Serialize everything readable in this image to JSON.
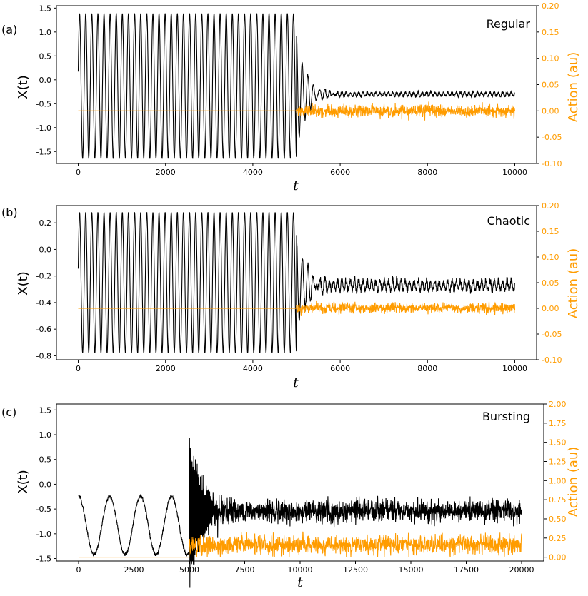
{
  "chart_data": [
    {
      "type": "line",
      "panel_letter": "(a)",
      "title": "Regular",
      "xlabel": "t",
      "ylabel": "X(t)",
      "ylabel_right": "Action (au)",
      "xlim": [
        -500,
        10500
      ],
      "ylim": [
        -1.75,
        1.55
      ],
      "ylim_right": [
        -0.1,
        0.2
      ],
      "xticks": [
        "0",
        "2000",
        "4000",
        "6000",
        "8000",
        "10000"
      ],
      "yticks": [
        "1.5",
        "1.0",
        "0.5",
        "0.0",
        "-0.5",
        "-1.0",
        "-1.5"
      ],
      "yticks_right": [
        "0.20",
        "0.15",
        "0.10",
        "0.05",
        "0.00",
        "-0.05",
        "-0.10"
      ],
      "series": [
        {
          "name": "X(t)",
          "color": "#000000",
          "description": "Regular oscillation between about -1.65 and 1.40 with period ~140 until t≈5000, then decays to a noisy steady state near -0.3",
          "pre_amplitude": 1.52,
          "pre_center": -0.13,
          "period": 140,
          "switch_t": 5000,
          "post_level": -0.3,
          "post_noise": 0.04,
          "x_end": 10000
        },
        {
          "name": "Action (au)",
          "color": "#ff9c00",
          "axis": "right",
          "description": "Zero until t≈5000, then noise of about ±0.012 around 0",
          "pre_level": 0.0,
          "post_noise": 0.012,
          "x_end": 10000
        }
      ]
    },
    {
      "type": "line",
      "panel_letter": "(b)",
      "title": "Chaotic",
      "xlabel": "t",
      "ylabel": "X(t)",
      "ylabel_right": "Action (au)",
      "xlim": [
        -500,
        10500
      ],
      "ylim": [
        -0.83,
        0.33
      ],
      "ylim_right": [
        -0.1,
        0.2
      ],
      "xticks": [
        "0",
        "2000",
        "4000",
        "6000",
        "8000",
        "10000"
      ],
      "yticks": [
        "0.2",
        "0.0",
        "-0.2",
        "-0.4",
        "-0.6",
        "-0.8"
      ],
      "yticks_right": [
        "0.20",
        "0.15",
        "0.10",
        "0.05",
        "0.00",
        "-0.05",
        "-0.10"
      ],
      "series": [
        {
          "name": "X(t)",
          "color": "#000000",
          "description": "Oscillation between about -0.78 and 0.28 with period ~140 until t≈5000, then irregular fluctuations near -0.27",
          "pre_amplitude": 0.53,
          "pre_center": -0.25,
          "period": 140,
          "switch_t": 5000,
          "post_level": -0.27,
          "post_noise": 0.035,
          "x_end": 10000
        },
        {
          "name": "Action (au)",
          "color": "#ff9c00",
          "axis": "right",
          "description": "Zero until t≈5000, then noise of about ±0.01 around 0",
          "pre_level": 0.0,
          "post_noise": 0.01,
          "x_end": 10000
        }
      ]
    },
    {
      "type": "line",
      "panel_letter": "(c)",
      "title": "Bursting",
      "xlabel": "t",
      "ylabel": "X(t)",
      "ylabel_right": "Action (au)",
      "xlim": [
        -1000,
        21000
      ],
      "ylim": [
        -1.55,
        1.62
      ],
      "ylim_right": [
        -0.05,
        2.0
      ],
      "xticks": [
        "0",
        "2500",
        "5000",
        "7500",
        "10000",
        "12500",
        "15000",
        "17500",
        "20000"
      ],
      "yticks": [
        "1.5",
        "1.0",
        "0.5",
        "0.0",
        "-0.5",
        "-1.0",
        "-1.5"
      ],
      "yticks_right": [
        "2.00",
        "1.75",
        "1.50",
        "1.25",
        "1.00",
        "0.75",
        "0.50",
        "0.25",
        "0.00"
      ],
      "series": [
        {
          "name": "X(t)",
          "color": "#000000",
          "description": "Slow bursting waves between about -1.42 and -0.25 (period ~1400) until t≈5000, then large spikes up to 1.5 decaying to noisy fluctuations around -0.55",
          "pre_period": 1400,
          "pre_min": -1.42,
          "pre_max": -0.25,
          "switch_t": 5000,
          "peak": 1.52,
          "post_level": -0.55,
          "post_noise": 0.22,
          "x_end": 20000
        },
        {
          "name": "Action (au)",
          "color": "#ff9c00",
          "axis": "right",
          "description": "Zero until t≈5000, then noisy values between about 0.0 and 0.35",
          "pre_level": 0.0,
          "post_center": 0.16,
          "post_noise": 0.13,
          "x_end": 20000
        }
      ]
    }
  ]
}
